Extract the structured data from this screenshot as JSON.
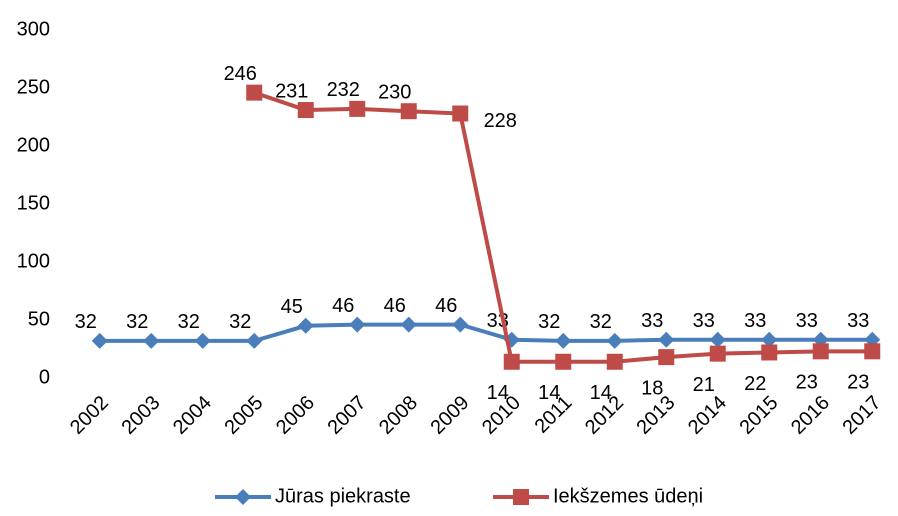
{
  "chart_data": {
    "type": "line",
    "categories": [
      "2002",
      "2003",
      "2004",
      "2005",
      "2006",
      "2007",
      "2008",
      "2009",
      "2010",
      "2011",
      "2012",
      "2013",
      "2014",
      "2015",
      "2016",
      "2017"
    ],
    "series": [
      {
        "name": "Jūras piekraste",
        "color": "#4a7ebb",
        "marker": "diamond",
        "values": [
          32,
          32,
          32,
          32,
          45,
          46,
          46,
          46,
          33,
          32,
          32,
          33,
          33,
          33,
          33,
          33
        ]
      },
      {
        "name": "Iekšzemes ūdeņi",
        "color": "#be4b48",
        "marker": "square",
        "values": [
          null,
          null,
          null,
          246,
          231,
          232,
          230,
          228,
          14,
          14,
          14,
          18,
          21,
          22,
          23,
          23
        ]
      }
    ],
    "ylim": [
      0,
      300
    ],
    "yticks": [
      0,
      50,
      100,
      150,
      200,
      250,
      300
    ],
    "grid": false,
    "legend": "bottom"
  }
}
